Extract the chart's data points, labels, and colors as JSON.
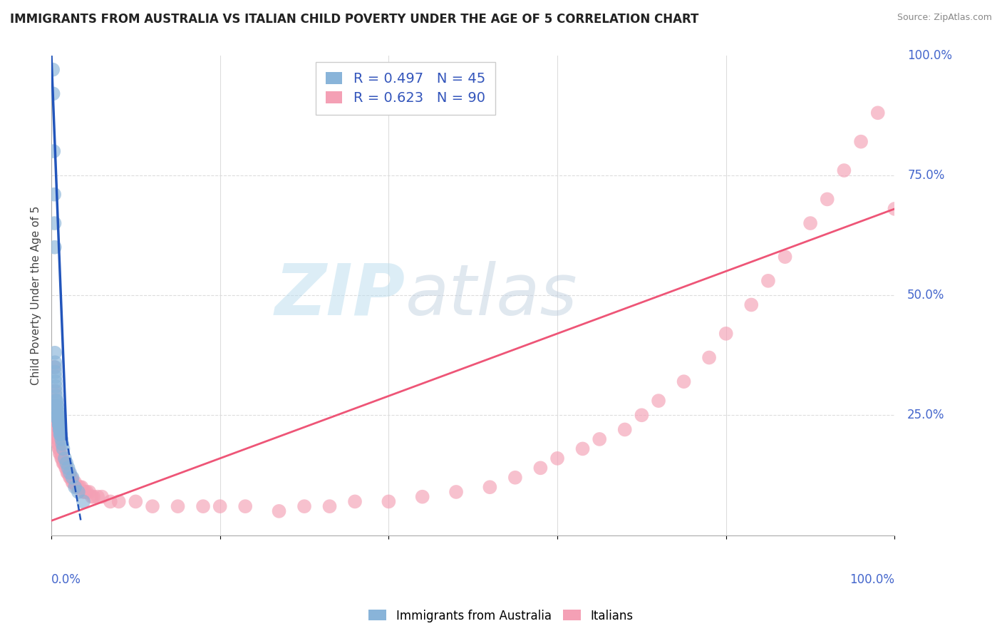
{
  "title": "IMMIGRANTS FROM AUSTRALIA VS ITALIAN CHILD POVERTY UNDER THE AGE OF 5 CORRELATION CHART",
  "source": "Source: ZipAtlas.com",
  "ylabel": "Child Poverty Under the Age of 5",
  "legend1_label": "R = 0.497   N = 45",
  "legend2_label": "R = 0.623   N = 90",
  "legend_sublabel1": "Immigrants from Australia",
  "legend_sublabel2": "Italians",
  "blue_color": "#89B4D9",
  "pink_color": "#F4A0B5",
  "blue_line_color": "#2255BB",
  "pink_line_color": "#EE5577",
  "watermark_zip": "ZIP",
  "watermark_atlas": "atlas",
  "blue_scatter_x": [
    0.18,
    0.22,
    0.28,
    0.35,
    0.38,
    0.4,
    0.42,
    0.44,
    0.45,
    0.46,
    0.48,
    0.5,
    0.52,
    0.55,
    0.58,
    0.6,
    0.62,
    0.65,
    0.68,
    0.7,
    0.72,
    0.75,
    0.78,
    0.8,
    0.82,
    0.85,
    0.88,
    0.9,
    0.92,
    0.95,
    0.98,
    1.0,
    1.05,
    1.1,
    1.2,
    1.3,
    1.4,
    1.6,
    1.8,
    2.0,
    2.2,
    2.5,
    2.8,
    3.2,
    3.8
  ],
  "blue_scatter_y": [
    97,
    92,
    80,
    71,
    65,
    60,
    38,
    36,
    35,
    34,
    33,
    32,
    31,
    30,
    29,
    28,
    28,
    27,
    27,
    26,
    26,
    25,
    25,
    25,
    24,
    24,
    24,
    23,
    23,
    23,
    22,
    22,
    21,
    21,
    20,
    19,
    18,
    16,
    15,
    14,
    13,
    12,
    10,
    9,
    7
  ],
  "pink_scatter_x": [
    0.3,
    0.35,
    0.4,
    0.42,
    0.44,
    0.46,
    0.48,
    0.5,
    0.52,
    0.55,
    0.58,
    0.6,
    0.62,
    0.65,
    0.68,
    0.7,
    0.72,
    0.75,
    0.78,
    0.8,
    0.82,
    0.85,
    0.9,
    0.95,
    1.0,
    1.1,
    1.2,
    1.3,
    1.4,
    1.5,
    1.6,
    1.7,
    1.8,
    1.9,
    2.0,
    2.1,
    2.2,
    2.3,
    2.4,
    2.5,
    2.6,
    2.8,
    3.0,
    3.2,
    3.4,
    3.6,
    3.8,
    4.0,
    4.2,
    4.5,
    4.8,
    5.0,
    5.5,
    6.0,
    7.0,
    8.0,
    10.0,
    12.0,
    15.0,
    18.0,
    20.0,
    23.0,
    27.0,
    30.0,
    33.0,
    36.0,
    40.0,
    44.0,
    48.0,
    52.0,
    55.0,
    58.0,
    60.0,
    63.0,
    65.0,
    68.0,
    70.0,
    72.0,
    75.0,
    78.0,
    80.0,
    83.0,
    85.0,
    87.0,
    90.0,
    92.0,
    94.0,
    96.0,
    98.0,
    100.0
  ],
  "pink_scatter_y": [
    35,
    30,
    28,
    27,
    26,
    26,
    25,
    25,
    24,
    24,
    23,
    23,
    22,
    22,
    21,
    21,
    21,
    20,
    20,
    20,
    19,
    19,
    18,
    18,
    17,
    17,
    16,
    16,
    15,
    15,
    15,
    14,
    14,
    13,
    13,
    13,
    12,
    12,
    12,
    11,
    11,
    11,
    10,
    10,
    10,
    10,
    9,
    9,
    9,
    9,
    8,
    8,
    8,
    8,
    7,
    7,
    7,
    6,
    6,
    6,
    6,
    6,
    5,
    6,
    6,
    7,
    7,
    8,
    9,
    10,
    12,
    14,
    16,
    18,
    20,
    22,
    25,
    28,
    32,
    37,
    42,
    48,
    53,
    58,
    65,
    70,
    76,
    82,
    88,
    68
  ],
  "blue_line_x1": 0.0,
  "blue_line_y1": 100.0,
  "blue_line_x2": 1.8,
  "blue_line_y2": 20.0,
  "blue_line_dash_x1": 1.8,
  "blue_line_dash_y1": 20.0,
  "blue_line_dash_x2": 3.5,
  "blue_line_dash_y2": 3.0,
  "pink_line_x1": 0.0,
  "pink_line_y1": 3.0,
  "pink_line_x2": 100.0,
  "pink_line_y2": 68.0,
  "xlim": [
    0,
    100
  ],
  "ylim": [
    0,
    100
  ],
  "right_ytick_vals": [
    25,
    50,
    75,
    100
  ],
  "right_ytick_labels": [
    "25.0%",
    "50.0%",
    "75.0%",
    "100.0%"
  ],
  "bg_color": "#FFFFFF",
  "grid_color": "#DDDDDD",
  "title_color": "#222222",
  "source_color": "#888888",
  "axis_label_color": "#444444",
  "tick_label_color": "#4466CC"
}
